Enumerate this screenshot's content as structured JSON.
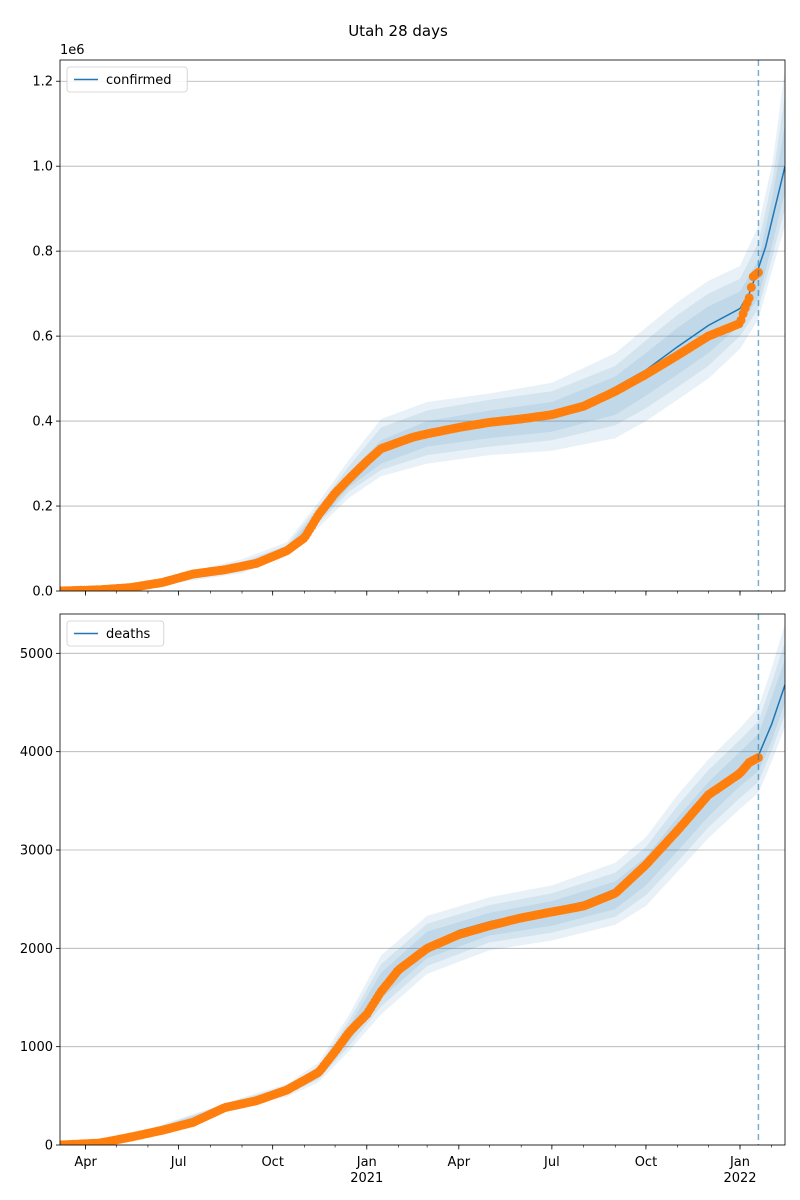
{
  "figure": {
    "title": "Utah 28 days",
    "colors": {
      "model": "#1f77b4",
      "observed": "#ff7f0e",
      "band": "#1f77b4",
      "grid": "#b0b0b0",
      "cutoff": "#1f77b4"
    }
  },
  "chart_data": [
    {
      "type": "line",
      "legend": "confirmed",
      "legend_position": "top-left",
      "y_scale_label": "1e6",
      "grid": "y",
      "xlim": [
        "2020-03-07",
        "2022-02-14"
      ],
      "ylim": [
        0,
        1250000
      ],
      "yticks": [
        0,
        200000,
        400000,
        600000,
        800000,
        1000000,
        1200000
      ],
      "ytick_labels": [
        "0.0",
        "0.2",
        "0.4",
        "0.6",
        "0.8",
        "1.0",
        "1.2"
      ],
      "cutoff_date": "2022-01-19",
      "model": {
        "x": [
          "2020-03-07",
          "2020-04-15",
          "2020-05-15",
          "2020-06-15",
          "2020-07-15",
          "2020-08-15",
          "2020-09-15",
          "2020-10-15",
          "2020-11-01",
          "2020-11-15",
          "2020-12-01",
          "2020-12-15",
          "2021-01-01",
          "2021-01-15",
          "2021-02-01",
          "2021-02-15",
          "2021-03-01",
          "2021-04-01",
          "2021-05-01",
          "2021-06-01",
          "2021-07-01",
          "2021-08-01",
          "2021-09-01",
          "2021-10-01",
          "2021-11-01",
          "2021-12-01",
          "2022-01-01",
          "2022-01-10",
          "2022-01-19",
          "2022-01-26",
          "2022-02-02",
          "2022-02-08",
          "2022-02-14"
        ],
        "y": [
          0,
          3000,
          8000,
          20000,
          40000,
          50000,
          65000,
          95000,
          125000,
          175000,
          230000,
          270000,
          310000,
          330000,
          350000,
          360000,
          368000,
          383000,
          395000,
          405000,
          415000,
          440000,
          480000,
          520000,
          575000,
          625000,
          665000,
          700000,
          760000,
          810000,
          880000,
          940000,
          1000000
        ]
      },
      "bands": [
        {
          "x": [
            "2020-06-01",
            "2020-09-01",
            "2020-10-15",
            "2020-11-15",
            "2020-12-15",
            "2021-01-15",
            "2021-03-01",
            "2021-05-01",
            "2021-07-01",
            "2021-09-01",
            "2021-10-01",
            "2021-11-01",
            "2021-12-01",
            "2022-01-01",
            "2022-01-19",
            "2022-02-02",
            "2022-02-14"
          ],
          "low": [
            10000,
            42000,
            85000,
            150000,
            220000,
            270000,
            300000,
            320000,
            330000,
            360000,
            400000,
            450000,
            500000,
            570000,
            640000,
            760000,
            860000
          ],
          "high": [
            22000,
            75000,
            115000,
            210000,
            310000,
            405000,
            445000,
            465000,
            490000,
            560000,
            620000,
            680000,
            730000,
            765000,
            860000,
            1010000,
            1230000
          ]
        },
        {
          "x": [
            "2020-06-01",
            "2020-09-01",
            "2020-10-15",
            "2020-11-15",
            "2020-12-15",
            "2021-01-15",
            "2021-03-01",
            "2021-05-01",
            "2021-07-01",
            "2021-09-01",
            "2021-10-01",
            "2021-11-01",
            "2021-12-01",
            "2022-01-01",
            "2022-01-19",
            "2022-02-02",
            "2022-02-14"
          ],
          "low": [
            12000,
            46000,
            88000,
            160000,
            235000,
            285000,
            320000,
            340000,
            355000,
            390000,
            430000,
            480000,
            530000,
            600000,
            665000,
            790000,
            900000
          ],
          "high": [
            20000,
            68000,
            108000,
            200000,
            295000,
            385000,
            425000,
            450000,
            470000,
            530000,
            590000,
            650000,
            700000,
            735000,
            820000,
            970000,
            1170000
          ]
        },
        {
          "x": [
            "2020-06-01",
            "2020-09-01",
            "2020-10-15",
            "2020-11-15",
            "2020-12-15",
            "2021-01-15",
            "2021-03-01",
            "2021-05-01",
            "2021-07-01",
            "2021-09-01",
            "2021-10-01",
            "2021-11-01",
            "2021-12-01",
            "2022-01-01",
            "2022-01-19",
            "2022-02-02",
            "2022-02-14"
          ],
          "low": [
            14000,
            50000,
            90000,
            165000,
            245000,
            300000,
            340000,
            360000,
            375000,
            415000,
            460000,
            510000,
            560000,
            625000,
            690000,
            820000,
            940000
          ],
          "high": [
            18000,
            62000,
            102000,
            190000,
            280000,
            355000,
            400000,
            425000,
            445000,
            505000,
            560000,
            620000,
            670000,
            705000,
            780000,
            930000,
            1100000
          ]
        }
      ],
      "observed": {
        "x": [
          "2020-03-07",
          "2020-04-15",
          "2020-05-15",
          "2020-06-15",
          "2020-07-15",
          "2020-08-15",
          "2020-09-15",
          "2020-10-15",
          "2020-11-01",
          "2020-11-15",
          "2020-12-01",
          "2020-12-15",
          "2021-01-01",
          "2021-01-15",
          "2021-02-01",
          "2021-02-15",
          "2021-03-01",
          "2021-04-01",
          "2021-05-01",
          "2021-06-01",
          "2021-07-01",
          "2021-08-01",
          "2021-09-01",
          "2021-10-01",
          "2021-11-01",
          "2021-12-01",
          "2022-01-01",
          "2022-01-05",
          "2022-01-10",
          "2022-01-14",
          "2022-01-19"
        ],
        "y": [
          0,
          3000,
          8000,
          20000,
          40000,
          50000,
          65000,
          95000,
          125000,
          180000,
          230000,
          265000,
          305000,
          335000,
          350000,
          362000,
          370000,
          385000,
          397000,
          405000,
          415000,
          435000,
          470000,
          510000,
          555000,
          600000,
          630000,
          660000,
          690000,
          740000,
          750000
        ]
      }
    },
    {
      "type": "line",
      "legend": "deaths",
      "legend_position": "top-left",
      "grid": "y",
      "xlim": [
        "2020-03-07",
        "2022-02-14"
      ],
      "ylim": [
        0,
        5400
      ],
      "yticks": [
        0,
        1000,
        2000,
        3000,
        4000,
        5000
      ],
      "ytick_labels": [
        "0",
        "1000",
        "2000",
        "3000",
        "4000",
        "5000"
      ],
      "cutoff_date": "2022-01-19",
      "xtick_dates": [
        "2020-04-01",
        "2020-07-01",
        "2020-10-01",
        "2021-01-01",
        "2021-04-01",
        "2021-07-01",
        "2021-10-01",
        "2022-01-01"
      ],
      "xtick_labels": [
        "Apr",
        "Jul",
        "Oct",
        "Jan",
        "Apr",
        "Jul",
        "Oct",
        "Jan"
      ],
      "xtick_year_labels": [
        "",
        "",
        "",
        "2021",
        "",
        "",
        "",
        "2022"
      ],
      "model": {
        "x": [
          "2020-03-07",
          "2020-04-15",
          "2020-05-15",
          "2020-06-15",
          "2020-07-15",
          "2020-08-15",
          "2020-09-15",
          "2020-10-15",
          "2020-11-15",
          "2020-12-01",
          "2020-12-15",
          "2021-01-01",
          "2021-01-15",
          "2021-02-01",
          "2021-03-01",
          "2021-04-01",
          "2021-05-01",
          "2021-06-01",
          "2021-07-01",
          "2021-08-01",
          "2021-09-01",
          "2021-10-01",
          "2021-11-01",
          "2021-12-01",
          "2022-01-01",
          "2022-01-19",
          "2022-02-01",
          "2022-02-14"
        ],
        "y": [
          0,
          20,
          80,
          150,
          230,
          380,
          450,
          560,
          720,
          930,
          1130,
          1360,
          1600,
          1800,
          2020,
          2180,
          2270,
          2340,
          2400,
          2470,
          2600,
          2860,
          3220,
          3560,
          3830,
          3960,
          4280,
          4680
        ]
      },
      "bands": [
        {
          "x": [
            "2020-06-01",
            "2020-09-01",
            "2020-10-15",
            "2020-11-15",
            "2020-12-15",
            "2021-01-15",
            "2021-03-01",
            "2021-05-01",
            "2021-07-01",
            "2021-09-01",
            "2021-10-01",
            "2021-11-01",
            "2021-12-01",
            "2022-01-01",
            "2022-01-19",
            "2022-02-01",
            "2022-02-14"
          ],
          "low": [
            100,
            400,
            490,
            640,
            960,
            1330,
            1740,
            1980,
            2080,
            2240,
            2430,
            2780,
            3120,
            3420,
            3580,
            3900,
            4250
          ],
          "high": [
            160,
            480,
            620,
            840,
            1330,
            1930,
            2330,
            2520,
            2640,
            2870,
            3130,
            3560,
            3920,
            4240,
            4450,
            4850,
            5300
          ]
        },
        {
          "x": [
            "2020-06-01",
            "2020-09-01",
            "2020-10-15",
            "2020-11-15",
            "2020-12-15",
            "2021-01-15",
            "2021-03-01",
            "2021-05-01",
            "2021-07-01",
            "2021-09-01",
            "2021-10-01",
            "2021-11-01",
            "2021-12-01",
            "2022-01-01",
            "2022-01-19",
            "2022-02-01",
            "2022-02-14"
          ],
          "low": [
            110,
            410,
            510,
            670,
            1010,
            1410,
            1820,
            2060,
            2160,
            2320,
            2540,
            2880,
            3230,
            3530,
            3690,
            4010,
            4380
          ],
          "high": [
            150,
            470,
            600,
            800,
            1270,
            1840,
            2250,
            2440,
            2560,
            2770,
            3030,
            3450,
            3810,
            4120,
            4310,
            4700,
            5120
          ]
        },
        {
          "x": [
            "2020-06-01",
            "2020-09-01",
            "2020-10-15",
            "2020-11-15",
            "2020-12-15",
            "2021-01-15",
            "2021-03-01",
            "2021-05-01",
            "2021-07-01",
            "2021-09-01",
            "2021-10-01",
            "2021-11-01",
            "2021-12-01",
            "2022-01-01",
            "2022-01-19",
            "2022-02-01",
            "2022-02-14"
          ],
          "low": [
            120,
            420,
            530,
            690,
            1060,
            1490,
            1900,
            2130,
            2230,
            2400,
            2640,
            2990,
            3340,
            3650,
            3800,
            4110,
            4500
          ],
          "high": [
            140,
            460,
            580,
            770,
            1210,
            1750,
            2170,
            2360,
            2480,
            2680,
            2930,
            3330,
            3690,
            4000,
            4180,
            4550,
            4940
          ]
        }
      ],
      "observed": {
        "x": [
          "2020-03-07",
          "2020-04-15",
          "2020-05-15",
          "2020-06-15",
          "2020-07-15",
          "2020-08-15",
          "2020-09-15",
          "2020-10-15",
          "2020-11-15",
          "2020-12-01",
          "2020-12-15",
          "2021-01-01",
          "2021-01-15",
          "2021-02-01",
          "2021-03-01",
          "2021-04-01",
          "2021-05-01",
          "2021-06-01",
          "2021-07-01",
          "2021-08-01",
          "2021-09-01",
          "2021-10-01",
          "2021-11-01",
          "2021-12-01",
          "2022-01-01",
          "2022-01-10",
          "2022-01-19"
        ],
        "y": [
          0,
          20,
          80,
          150,
          230,
          380,
          450,
          560,
          740,
          950,
          1150,
          1330,
          1560,
          1780,
          2000,
          2140,
          2230,
          2310,
          2370,
          2430,
          2560,
          2850,
          3200,
          3560,
          3780,
          3890,
          3940
        ]
      }
    }
  ]
}
